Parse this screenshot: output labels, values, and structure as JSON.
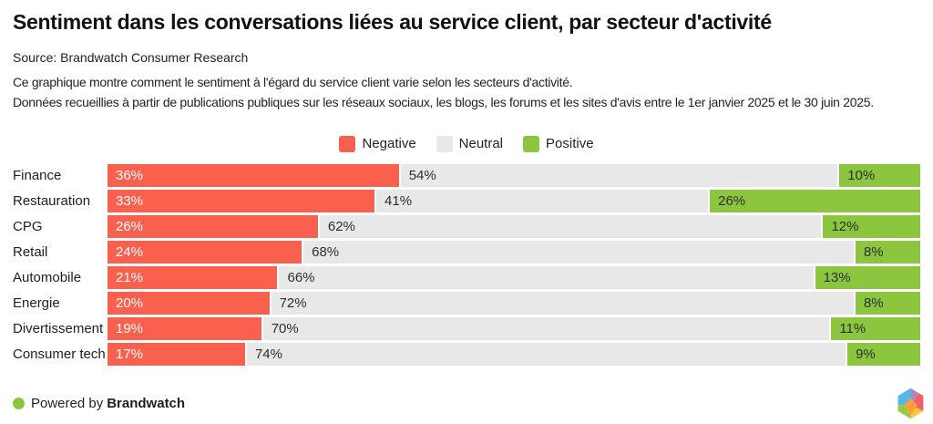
{
  "header": {
    "title": "Sentiment dans les conversations liées au service client, par secteur d'activité",
    "source": "Source: Brandwatch Consumer Research",
    "description_line1": "Ce graphique montre comment le sentiment à l'égard du service client varie selon les secteurs d'activité.",
    "description_line2": "Données recueillies à partir de publications publiques sur les réseaux sociaux, les blogs, les forums et les sites d'avis entre le 1er janvier 2025 et le 30 juin 2025."
  },
  "legend": {
    "items": [
      {
        "label": "Negative",
        "color": "#F9604E"
      },
      {
        "label": "Neutral",
        "color": "#E8E8E8"
      },
      {
        "label": "Positive",
        "color": "#8CC63F"
      }
    ]
  },
  "chart_data": {
    "type": "bar",
    "orientation": "horizontal",
    "stacked": true,
    "unit": "%",
    "xlim": [
      0,
      100
    ],
    "grid": false,
    "legend_position": "top-center",
    "value_labels": "inside-start",
    "categories": [
      "Finance",
      "Restauration",
      "CPG",
      "Retail",
      "Automobile",
      "Energie",
      "Divertissement",
      "Consumer tech"
    ],
    "series": [
      {
        "name": "Negative",
        "color": "#F9604E",
        "label_style": "light",
        "values": [
          36,
          33,
          26,
          24,
          21,
          20,
          19,
          17
        ]
      },
      {
        "name": "Neutral",
        "color": "#E8E8E8",
        "label_style": "dark",
        "values": [
          54,
          41,
          62,
          68,
          66,
          72,
          70,
          74
        ]
      },
      {
        "name": "Positive",
        "color": "#8CC63F",
        "label_style": "dark",
        "values": [
          10,
          26,
          12,
          8,
          13,
          8,
          11,
          9
        ]
      }
    ]
  },
  "footer": {
    "powered_by": "Powered by",
    "brand": "Brandwatch",
    "dot_color": "#8CC63F",
    "logo": "brandwatch-hexagon-logo"
  }
}
